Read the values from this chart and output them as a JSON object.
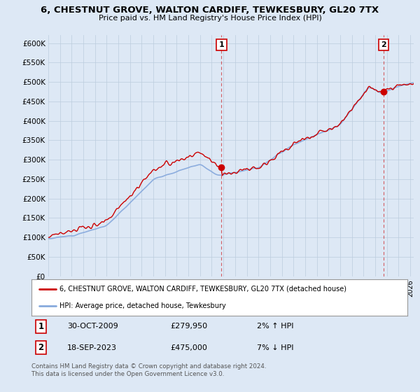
{
  "title": "6, CHESTNUT GROVE, WALTON CARDIFF, TEWKESBURY, GL20 7TX",
  "subtitle": "Price paid vs. HM Land Registry's House Price Index (HPI)",
  "ylim": [
    0,
    620000
  ],
  "xlim_start": 1995.0,
  "xlim_end": 2026.3,
  "sale1_date": 2009.83,
  "sale1_price": 279950,
  "sale2_date": 2023.71,
  "sale2_price": 475000,
  "sale_color": "#cc0000",
  "hpi_color": "#88aadd",
  "dashed_color": "#cc0000",
  "legend_label1": "6, CHESTNUT GROVE, WALTON CARDIFF, TEWKESBURY, GL20 7TX (detached house)",
  "legend_label2": "HPI: Average price, detached house, Tewkesbury",
  "footnote": "Contains HM Land Registry data © Crown copyright and database right 2024.\nThis data is licensed under the Open Government Licence v3.0.",
  "bg_color": "#dde8f5",
  "plot_bg_color": "#dde8f5",
  "grid_color": "#bbccdd"
}
